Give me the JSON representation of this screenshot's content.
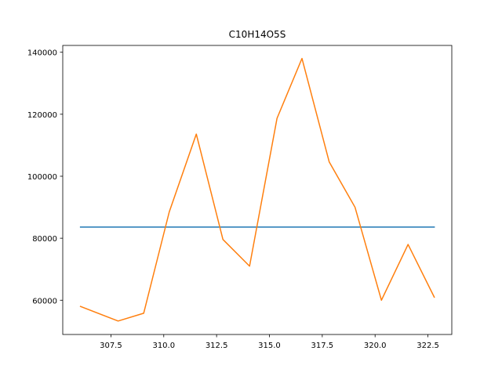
{
  "chart_data": {
    "type": "line",
    "title": "C10H14O5S",
    "xlabel": "",
    "ylabel": "",
    "xlim": [
      305.22,
      323.63
    ],
    "ylim": [
      48950,
      142200
    ],
    "xticks": [
      307.5,
      310.0,
      312.5,
      315.0,
      317.5,
      320.0,
      322.5
    ],
    "xtick_labels": [
      "307.5",
      "310.0",
      "312.5",
      "315.0",
      "317.5",
      "320.0",
      "322.5"
    ],
    "yticks": [
      60000,
      80000,
      100000,
      120000,
      140000
    ],
    "ytick_labels": [
      "60000",
      "80000",
      "100000",
      "120000",
      "140000"
    ],
    "grid": false,
    "legend": "none",
    "series": [
      {
        "color": "#1f77b4",
        "x": [
          306.06,
          322.8
        ],
        "y": [
          83600,
          83600
        ]
      },
      {
        "color": "#ff7f0e",
        "x": [
          306.06,
          307.84,
          309.05,
          310.26,
          311.54,
          312.8,
          314.06,
          315.36,
          316.54,
          317.83,
          319.05,
          320.3,
          321.56,
          322.8
        ],
        "y": [
          58000,
          53300,
          55800,
          88500,
          113600,
          79600,
          71000,
          118700,
          138000,
          104600,
          90000,
          60000,
          78000,
          61000
        ]
      }
    ]
  }
}
